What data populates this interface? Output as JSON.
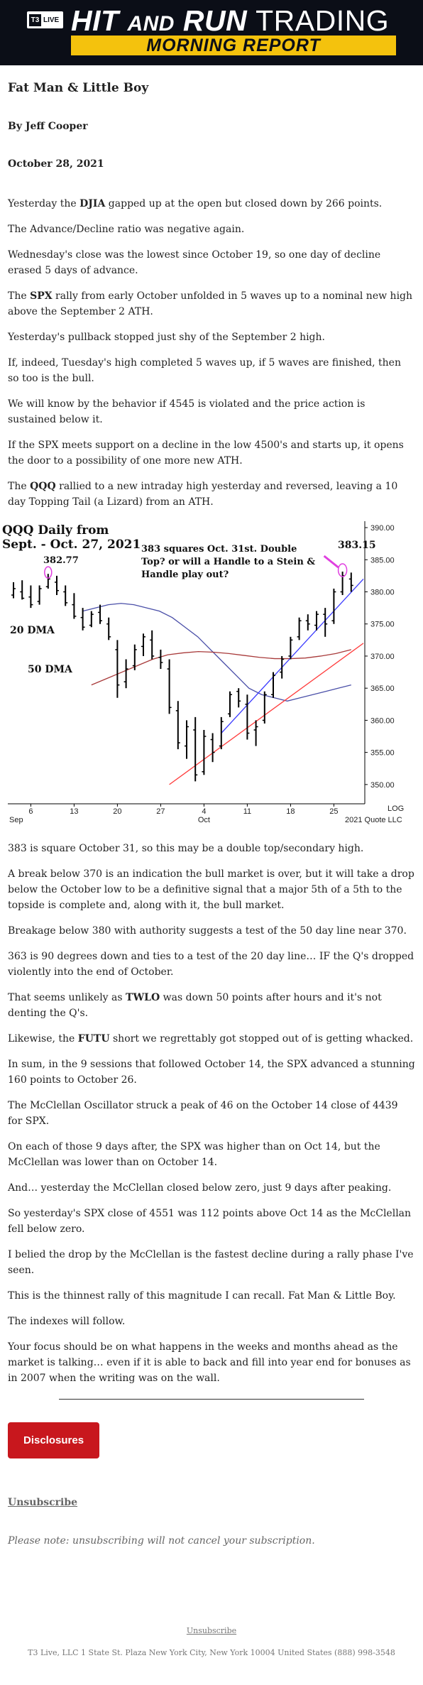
{
  "header": {
    "logo_mark": "T3",
    "logo_live": "LIVE",
    "brand_hit": "HIT",
    "brand_and": "AND",
    "brand_run": "RUN",
    "brand_trading": "TRADING",
    "subtitle": "MORNING REPORT"
  },
  "article": {
    "title": "Fat Man & Little Boy",
    "byline": "By Jeff Cooper",
    "date": "October 28, 2021",
    "paras_before": [
      [
        "Yesterday the ",
        "DJIA",
        " gapped up at the open but closed down by 266 points."
      ],
      [
        "The Advance/Decline ratio was negative again."
      ],
      [
        "Wednesday's close was the lowest since October 19, so one day of decline erased 5 days of advance."
      ],
      [
        "The ",
        "SPX",
        " rally from early October unfolded in 5 waves up to a nominal new high above the September 2 ATH."
      ],
      [
        "Yesterday's pullback stopped just shy of the September 2 high."
      ],
      [
        "If, indeed, Tuesday's high completed 5 waves up, if 5 waves are finished, then so too is the bull."
      ],
      [
        "We will know by the behavior if 4545 is violated and the price action is sustained below it."
      ],
      [
        "If the SPX meets support on a decline in the low 4500's and starts up, it opens the door to a possibility of one more new ATH."
      ],
      [
        "The ",
        "QQQ",
        " rallied to a new intraday high yesterday and reversed, leaving a 10 day Topping Tail (a Lizard) from an ATH."
      ]
    ],
    "paras_after": [
      [
        "383 is square October 31, so this may be a double top/secondary high."
      ],
      [
        "A break below 370 is an indication the bull market is over, but it will take a drop below the October low to be a definitive signal that a major 5th of a 5th to the topside is complete and, along with it, the bull market."
      ],
      [
        "Breakage below 380 with authority suggests a test of the 50 day line near 370."
      ],
      [
        "363 is 90 degrees down and ties to a test of the 20 day line… IF the Q's dropped violently into the end of October."
      ],
      [
        "That seems unlikely as ",
        "TWLO",
        " was down 50 points after hours and it's not denting the Q's."
      ],
      [
        "Likewise, the ",
        "FUTU",
        " short we regrettably got stopped out of is getting whacked."
      ],
      [
        "In sum, in the 9 sessions that followed October 14, the SPX advanced a stunning 160 points to October 26."
      ],
      [
        "The McClellan Oscillator struck a peak of 46 on the October 14 close of 4439 for SPX."
      ],
      [
        "On each of those 9 days after, the SPX was higher than on Oct 14, but the McClellan was lower than on October 14."
      ],
      [
        "And… yesterday the McClellan closed below zero, just 9 days after peaking."
      ],
      [
        "So yesterday's SPX close of 4551 was 112 points above Oct 14 as the McClellan fell below zero."
      ],
      [
        "I belied the drop by the McClellan is the fastest decline during a rally phase I've seen."
      ],
      [
        "This is the thinnest rally of this magnitude I can recall. Fat Man & Little Boy."
      ],
      [
        "The indexes will follow."
      ],
      [
        "Your focus should be on what happens in the weeks and months ahead as the market is talking… even if it is able to back and fill into year end for bonuses as in 2007 when the writing was on the wall."
      ]
    ]
  },
  "chart_data": {
    "type": "candlestick",
    "title": "QQQ Daily from Sept. - Oct. 27, 2021",
    "annotation_text": [
      "383 squares Oct. 31st. Double",
      "Top? or will a Handle to a Stein &",
      "Handle play out?"
    ],
    "high_labels": {
      "left": "382.77",
      "right": "383.15"
    },
    "ma_labels": {
      "ma20": "20 DMA",
      "ma50": "50 DMA"
    },
    "x_ticks": [
      "6",
      "13",
      "20",
      "27",
      "4",
      "11",
      "18",
      "25"
    ],
    "month_labels": {
      "left": "Sep",
      "right": "Oct"
    },
    "y_ticks": [
      390,
      385,
      380,
      375,
      370,
      365,
      360,
      355,
      350
    ],
    "y_range": [
      347,
      391
    ],
    "log_label": "LOG",
    "copyright": "2021 Quote LLC",
    "colors": {
      "ma20": "#4a4fa8",
      "ma50": "#a83a3a",
      "trend_blue": "#3b3bff",
      "trend_red": "#ff3b3b",
      "highlight": "#e040e0"
    },
    "bars": [
      [
        379.5,
        381.5,
        379.0,
        380.5
      ],
      [
        380.0,
        381.8,
        378.8,
        379.0
      ],
      [
        379.2,
        381.0,
        377.5,
        378.0
      ],
      [
        378.5,
        381.0,
        378.0,
        380.5
      ],
      [
        380.8,
        382.8,
        380.5,
        382.0
      ],
      [
        381.5,
        382.5,
        379.5,
        380.2
      ],
      [
        380.0,
        381.0,
        377.8,
        378.3
      ],
      [
        378.0,
        379.8,
        375.8,
        376.2
      ],
      [
        376.0,
        377.5,
        374.0,
        374.5
      ],
      [
        374.8,
        377.0,
        374.5,
        376.5
      ],
      [
        376.8,
        378.0,
        375.0,
        375.5
      ],
      [
        375.0,
        376.0,
        372.5,
        373.0
      ],
      [
        371.0,
        372.5,
        363.5,
        365.5
      ],
      [
        366.0,
        369.5,
        365.0,
        368.0
      ],
      [
        368.5,
        371.8,
        367.8,
        371.0
      ],
      [
        371.5,
        373.5,
        370.0,
        373.0
      ],
      [
        372.5,
        374.0,
        369.5,
        370.0
      ],
      [
        369.8,
        371.0,
        368.0,
        369.0
      ],
      [
        368.0,
        369.5,
        361.0,
        362.0
      ],
      [
        361.5,
        363.0,
        355.5,
        356.5
      ],
      [
        356.0,
        360.0,
        354.0,
        359.0
      ],
      [
        358.5,
        360.5,
        350.5,
        351.5
      ],
      [
        352.0,
        358.5,
        351.5,
        357.5
      ],
      [
        357.0,
        358.0,
        353.5,
        355.0
      ],
      [
        356.0,
        360.5,
        355.5,
        359.8
      ],
      [
        361.0,
        364.5,
        360.5,
        364.0
      ],
      [
        364.5,
        365.0,
        362.0,
        363.0
      ],
      [
        362.5,
        364.0,
        357.0,
        358.0
      ],
      [
        358.5,
        360.0,
        356.0,
        359.0
      ],
      [
        360.0,
        364.5,
        359.5,
        364.0
      ],
      [
        364.0,
        367.5,
        363.5,
        367.0
      ],
      [
        367.5,
        370.0,
        366.5,
        369.5
      ],
      [
        370.0,
        373.0,
        369.5,
        372.5
      ],
      [
        373.0,
        376.0,
        372.5,
        375.5
      ],
      [
        375.5,
        376.5,
        374.0,
        375.0
      ],
      [
        374.8,
        377.0,
        374.0,
        376.5
      ],
      [
        376.5,
        377.5,
        373.0,
        375.0
      ],
      [
        375.5,
        380.5,
        375.0,
        380.0
      ],
      [
        380.0,
        383.15,
        379.5,
        382.5
      ],
      [
        382.0,
        383.0,
        380.0,
        381.0
      ]
    ],
    "ma20": [
      377.0,
      377.5,
      378.0,
      378.2,
      378.0,
      377.5,
      377.0,
      376.0,
      374.5,
      373.0,
      371.0,
      369.0,
      367.0,
      365.0,
      364.0,
      363.5,
      363.0,
      363.5,
      364.0,
      364.5,
      365.0,
      365.5
    ],
    "ma50": [
      365.5,
      366.5,
      367.5,
      368.5,
      369.5,
      370.2,
      370.5,
      370.7,
      370.6,
      370.4,
      370.1,
      369.8,
      369.6,
      369.6,
      369.7,
      370.0,
      370.4,
      371.0
    ],
    "trend_blue": [
      [
        358.0,
        382.0
      ]
    ],
    "trend_red": [
      [
        350.0,
        372.0
      ]
    ]
  },
  "actions": {
    "disclosures": "Disclosures",
    "unsubscribe": "Unsubscribe",
    "note": "Please note: unsubscribing will not cancel your subscription."
  },
  "footer": {
    "unsubscribe_link": "Unsubscribe",
    "address": "T3 Live, LLC 1 State St. Plaza New York City, New York 10004 United States (888) 998-3548"
  }
}
